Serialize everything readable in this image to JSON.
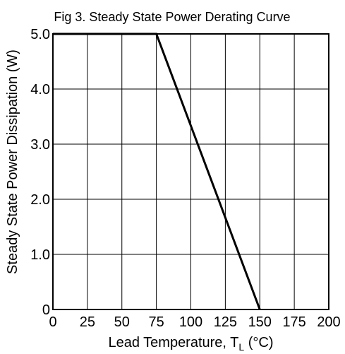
{
  "chart_data": {
    "type": "line",
    "title": "Fig  3. Steady State Power Derating Curve",
    "xlabel": "Lead Temperature, T",
    "xlabel_subscript": "L",
    "xlabel_suffix": " (°C)",
    "ylabel": "Steady State Power Dissipation (W)",
    "xlim": [
      0,
      200
    ],
    "ylim": [
      0,
      5
    ],
    "x_ticks": [
      0,
      25,
      50,
      75,
      100,
      125,
      150,
      175,
      200
    ],
    "x_tick_labels": [
      "0",
      "25",
      "50",
      "75",
      "100",
      "125",
      "150",
      "175",
      "200"
    ],
    "y_ticks": [
      0,
      1,
      2,
      3,
      4,
      5
    ],
    "y_tick_labels": [
      "0",
      "1.0",
      "2.0",
      "3.0",
      "4.0",
      "5.0"
    ],
    "grid": true,
    "series": [
      {
        "x": [
          0,
          75,
          150
        ],
        "y": [
          5.0,
          5.0,
          0
        ]
      }
    ]
  }
}
